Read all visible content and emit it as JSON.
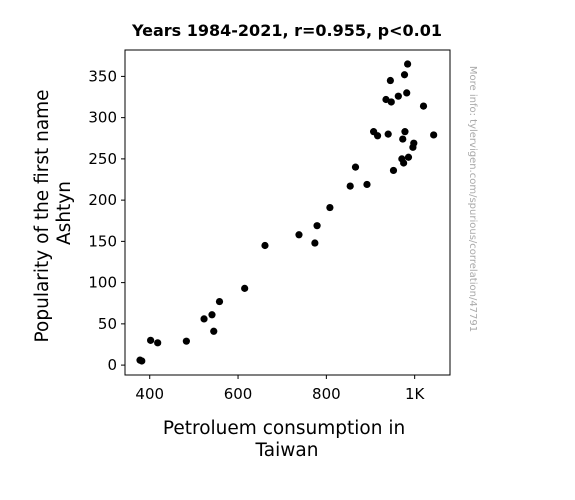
{
  "chart_data": {
    "type": "scatter",
    "title": "Years 1984-2021, r=0.955, p<0.01",
    "xlabel_lines": [
      "Petroluem consumption in",
      "Taiwan"
    ],
    "ylabel_lines": [
      "Popularity of the first name",
      "Ashtyn"
    ],
    "watermark": "More info: tylervigen.com/spurious/correlation/47791",
    "xlim": [
      344,
      1080
    ],
    "ylim": [
      -12,
      382
    ],
    "x_ticks": [
      {
        "value": 400,
        "label": "400"
      },
      {
        "value": 600,
        "label": "600"
      },
      {
        "value": 800,
        "label": "800"
      },
      {
        "value": 1000,
        "label": "1K"
      }
    ],
    "y_ticks": [
      {
        "value": 0,
        "label": "0"
      },
      {
        "value": 50,
        "label": "50"
      },
      {
        "value": 100,
        "label": "100"
      },
      {
        "value": 150,
        "label": "150"
      },
      {
        "value": 200,
        "label": "200"
      },
      {
        "value": 250,
        "label": "250"
      },
      {
        "value": 300,
        "label": "300"
      },
      {
        "value": 350,
        "label": "350"
      }
    ],
    "grid": false,
    "marker_color": "#000000",
    "points": [
      {
        "x": 378,
        "y": 6
      },
      {
        "x": 382,
        "y": 5
      },
      {
        "x": 402,
        "y": 30
      },
      {
        "x": 418,
        "y": 27
      },
      {
        "x": 483,
        "y": 29
      },
      {
        "x": 523,
        "y": 56
      },
      {
        "x": 541,
        "y": 61
      },
      {
        "x": 545,
        "y": 41
      },
      {
        "x": 558,
        "y": 77
      },
      {
        "x": 615,
        "y": 93
      },
      {
        "x": 661,
        "y": 145
      },
      {
        "x": 738,
        "y": 158
      },
      {
        "x": 774,
        "y": 148
      },
      {
        "x": 779,
        "y": 169
      },
      {
        "x": 808,
        "y": 191
      },
      {
        "x": 854,
        "y": 217
      },
      {
        "x": 866,
        "y": 240
      },
      {
        "x": 892,
        "y": 219
      },
      {
        "x": 907,
        "y": 283
      },
      {
        "x": 916,
        "y": 278
      },
      {
        "x": 935,
        "y": 322
      },
      {
        "x": 940,
        "y": 280
      },
      {
        "x": 945,
        "y": 345
      },
      {
        "x": 947,
        "y": 319
      },
      {
        "x": 952,
        "y": 236
      },
      {
        "x": 963,
        "y": 326
      },
      {
        "x": 971,
        "y": 250
      },
      {
        "x": 973,
        "y": 274
      },
      {
        "x": 975,
        "y": 245
      },
      {
        "x": 977,
        "y": 352
      },
      {
        "x": 978,
        "y": 283
      },
      {
        "x": 982,
        "y": 330
      },
      {
        "x": 984,
        "y": 365
      },
      {
        "x": 986,
        "y": 252
      },
      {
        "x": 996,
        "y": 264
      },
      {
        "x": 998,
        "y": 269
      },
      {
        "x": 1020,
        "y": 314
      },
      {
        "x": 1043,
        "y": 279
      }
    ]
  }
}
